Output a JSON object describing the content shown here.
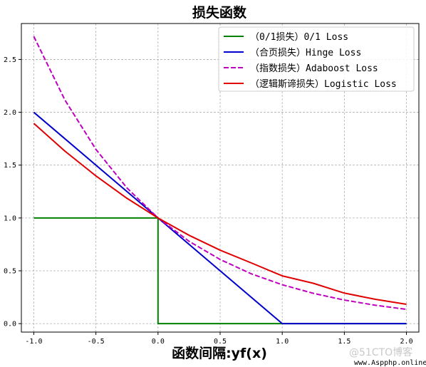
{
  "chart_data": {
    "type": "line",
    "title": "损失函数",
    "xlabel": "函数间隔:yf(x)",
    "ylabel": "",
    "xlim": [
      -1.1,
      2.1
    ],
    "ylim": [
      -0.08,
      2.84
    ],
    "xticks": [
      "-1.0",
      "-0.5",
      "0.0",
      "0.5",
      "1.0",
      "1.5",
      "2.0"
    ],
    "xtick_values": [
      -1.0,
      -0.5,
      0.0,
      0.5,
      1.0,
      1.5,
      2.0
    ],
    "yticks": [
      "0.0",
      "0.5",
      "1.0",
      "1.5",
      "2.0",
      "2.5"
    ],
    "ytick_values": [
      0.0,
      0.5,
      1.0,
      1.5,
      2.0,
      2.5
    ],
    "grid": true,
    "legend_position": "top-right",
    "series": [
      {
        "name": "（0/1损失）0/1 Loss",
        "color": "#008000",
        "style": "solid",
        "x": [
          -1.0,
          0.0,
          0.0,
          2.0
        ],
        "y": [
          1.0,
          1.0,
          0.0,
          0.0
        ]
      },
      {
        "name": "（合页损失）Hinge Loss",
        "color": "#0000cd",
        "style": "solid",
        "x": [
          -1.0,
          -0.5,
          0.0,
          0.5,
          1.0,
          1.5,
          2.0
        ],
        "y": [
          2.0,
          1.5,
          1.0,
          0.5,
          0.0,
          0.0,
          0.0
        ]
      },
      {
        "name": "（指数损失）Adaboost Loss",
        "color": "#bf00bf",
        "style": "dashed",
        "x": [
          -1.0,
          -0.75,
          -0.5,
          -0.25,
          0.0,
          0.25,
          0.5,
          0.75,
          1.0,
          1.25,
          1.5,
          1.75,
          2.0
        ],
        "y": [
          2.718,
          2.117,
          1.649,
          1.284,
          1.0,
          0.779,
          0.607,
          0.472,
          0.368,
          0.287,
          0.223,
          0.174,
          0.135
        ]
      },
      {
        "name": "（逻辑斯谛损失）Logistic Loss",
        "color": "#e00000",
        "style": "solid",
        "x": [
          -1.0,
          -0.75,
          -0.5,
          -0.25,
          0.0,
          0.25,
          0.5,
          0.75,
          1.0,
          1.25,
          1.5,
          1.75,
          2.0
        ],
        "y": [
          1.895,
          1.633,
          1.398,
          1.186,
          1.0,
          0.836,
          0.695,
          0.575,
          0.452,
          0.382,
          0.289,
          0.23,
          0.183
        ]
      }
    ]
  },
  "watermark": {
    "brand": "@51CTO博客",
    "site": "www.Aspphp.online"
  }
}
